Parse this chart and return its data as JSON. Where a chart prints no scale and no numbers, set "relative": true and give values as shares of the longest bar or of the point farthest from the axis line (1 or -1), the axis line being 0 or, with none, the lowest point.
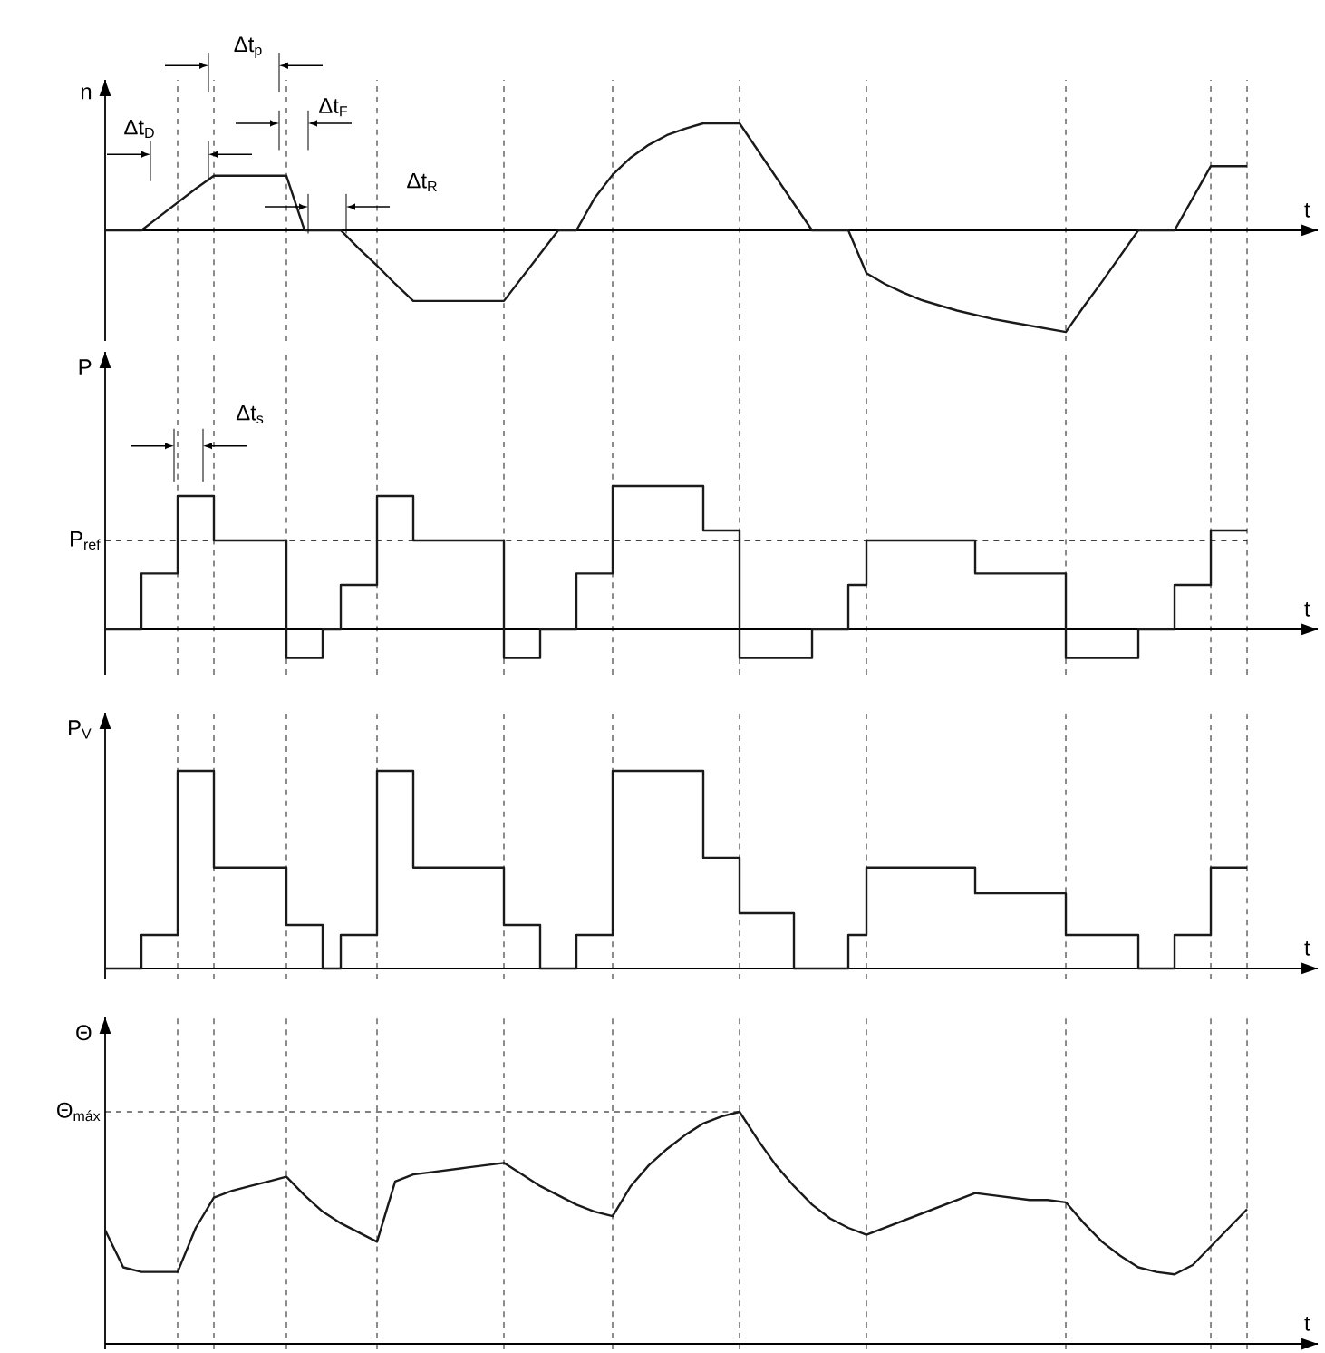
{
  "chart_data": [
    {
      "type": "line",
      "relative": true,
      "grid": "x",
      "xlabel": "t",
      "ylabel": "n",
      "categories": [
        null,
        null,
        null,
        null,
        null,
        null,
        null,
        null,
        null,
        null,
        null,
        null,
        null,
        null,
        null,
        null,
        null,
        null,
        null,
        null,
        null,
        null,
        null,
        null,
        null,
        null,
        null,
        null,
        null,
        null,
        null,
        null,
        null,
        null,
        null,
        null,
        null,
        null,
        null,
        null,
        null,
        null,
        null,
        null,
        null,
        null,
        null,
        null,
        null,
        null,
        null,
        null,
        null,
        null,
        null,
        null,
        null,
        null,
        null,
        null,
        null,
        null,
        null,
        null
      ],
      "series": [
        {
          "color": "#1a1a1a",
          "values": [
            0,
            0,
            0,
            0.13,
            0.26,
            0.39,
            0.51,
            0.51,
            0.51,
            0.51,
            0.51,
            0,
            0,
            0,
            -0.17,
            -0.33,
            -0.5,
            -0.66,
            -0.66,
            -0.66,
            -0.66,
            -0.66,
            -0.66,
            -0.44,
            -0.22,
            0,
            0,
            0.3,
            0.52,
            0.68,
            0.8,
            0.89,
            0.95,
            1,
            1,
            1,
            0.75,
            0.5,
            0.25,
            0,
            0,
            0,
            -0.4,
            -0.5,
            -0.58,
            -0.65,
            -0.7,
            -0.75,
            -0.79,
            -0.83,
            -0.86,
            -0.89,
            -0.92,
            -0.95,
            -0.71,
            -0.48,
            -0.24,
            0,
            0,
            0,
            0.3,
            0.6,
            0.6,
            0.6
          ]
        }
      ],
      "annotations": [
        "Δt$_{D}$",
        "Δt$_{p}$",
        "Δt$_{F}$",
        "Δt$_{R}$"
      ]
    },
    {
      "type": "step",
      "relative": true,
      "grid": "x",
      "xlabel": "t",
      "ylabel": "P",
      "categories": [
        null,
        null,
        null,
        null,
        null,
        null,
        null,
        null,
        null,
        null,
        null,
        null,
        null,
        null,
        null,
        null,
        null,
        null,
        null,
        null,
        null,
        null,
        null,
        null,
        null,
        null,
        null,
        null,
        null,
        null,
        null,
        null,
        null,
        null,
        null,
        null,
        null,
        null,
        null,
        null,
        null,
        null,
        null,
        null,
        null,
        null,
        null,
        null,
        null,
        null,
        null,
        null,
        null,
        null,
        null,
        null,
        null,
        null,
        null,
        null,
        null,
        null,
        null,
        null
      ],
      "series": [
        {
          "color": "#1a1a1a",
          "values": [
            0,
            0,
            0.39,
            0.39,
            0.93,
            0.93,
            0.62,
            0.62,
            0.62,
            0.62,
            -0.2,
            -0.2,
            0,
            0.31,
            0.31,
            0.93,
            0.93,
            0.62,
            0.62,
            0.62,
            0.62,
            0.62,
            -0.2,
            -0.2,
            0,
            0,
            0.39,
            0.39,
            1,
            1,
            1,
            1,
            1,
            0.69,
            0.69,
            -0.2,
            -0.2,
            -0.2,
            -0.2,
            0,
            0,
            0.31,
            0.62,
            0.62,
            0.62,
            0.62,
            0.62,
            0.62,
            0.39,
            0.39,
            0.39,
            0.39,
            0.39,
            -0.2,
            -0.2,
            -0.2,
            -0.2,
            0,
            0,
            0.31,
            0.31,
            0.69,
            0.69,
            0.69
          ]
        }
      ],
      "ref_lines": [
        {
          "axis": "y",
          "value": 0.62,
          "label": "P$_{ref}$",
          "line_style": "dashed"
        }
      ],
      "annotations": [
        "Δt$_{s}$"
      ]
    },
    {
      "type": "step",
      "relative": true,
      "grid": "x",
      "xlabel": "t",
      "ylabel": "P$_{V}$",
      "categories": [
        null,
        null,
        null,
        null,
        null,
        null,
        null,
        null,
        null,
        null,
        null,
        null,
        null,
        null,
        null,
        null,
        null,
        null,
        null,
        null,
        null,
        null,
        null,
        null,
        null,
        null,
        null,
        null,
        null,
        null,
        null,
        null,
        null,
        null,
        null,
        null,
        null,
        null,
        null,
        null,
        null,
        null,
        null,
        null,
        null,
        null,
        null,
        null,
        null,
        null,
        null,
        null,
        null,
        null,
        null,
        null,
        null,
        null,
        null,
        null,
        null,
        null,
        null,
        null
      ],
      "series": [
        {
          "color": "#1a1a1a",
          "values": [
            0,
            0,
            0.17,
            0.17,
            1,
            1,
            0.51,
            0.51,
            0.51,
            0.51,
            0.22,
            0.22,
            0,
            0.17,
            0.17,
            1,
            1,
            0.51,
            0.51,
            0.51,
            0.51,
            0.51,
            0.22,
            0.22,
            0,
            0,
            0.17,
            0.17,
            1,
            1,
            1,
            1,
            1,
            0.56,
            0.56,
            0.28,
            0.28,
            0.28,
            0,
            0,
            0,
            0.17,
            0.51,
            0.51,
            0.51,
            0.51,
            0.51,
            0.51,
            0.38,
            0.38,
            0.38,
            0.38,
            0.38,
            0.17,
            0.17,
            0.17,
            0.17,
            0,
            0,
            0.17,
            0.17,
            0.51,
            0.51,
            0.51
          ]
        }
      ]
    },
    {
      "type": "line",
      "relative": true,
      "grid": "x",
      "xlabel": "t",
      "ylabel": "Θ",
      "categories": [
        null,
        null,
        null,
        null,
        null,
        null,
        null,
        null,
        null,
        null,
        null,
        null,
        null,
        null,
        null,
        null,
        null,
        null,
        null,
        null,
        null,
        null,
        null,
        null,
        null,
        null,
        null,
        null,
        null,
        null,
        null,
        null,
        null,
        null,
        null,
        null,
        null,
        null,
        null,
        null,
        null,
        null,
        null,
        null,
        null,
        null,
        null,
        null,
        null,
        null,
        null,
        null,
        null,
        null,
        null,
        null,
        null,
        null,
        null,
        null,
        null,
        null,
        null,
        null
      ],
      "series": [
        {
          "color": "#1a1a1a",
          "values": [
            0.49,
            0.33,
            0.31,
            0.31,
            0.31,
            0.5,
            0.63,
            0.66,
            0.68,
            0.7,
            0.72,
            0.64,
            0.57,
            0.52,
            0.48,
            0.44,
            0.7,
            0.73,
            0.74,
            0.75,
            0.76,
            0.77,
            0.78,
            0.73,
            0.68,
            0.64,
            0.6,
            0.57,
            0.55,
            0.68,
            0.77,
            0.84,
            0.9,
            0.95,
            0.98,
            1,
            0.88,
            0.77,
            0.68,
            0.6,
            0.54,
            0.5,
            0.47,
            0.5,
            0.53,
            0.56,
            0.59,
            0.62,
            0.65,
            0.64,
            0.63,
            0.62,
            0.62,
            0.61,
            0.52,
            0.44,
            0.38,
            0.33,
            0.31,
            0.3,
            0.34,
            0.42,
            0.5,
            0.58
          ]
        }
      ],
      "ref_lines": [
        {
          "axis": "y",
          "value": 1,
          "label": "Θ$_{máx}$",
          "line_style": "dashed"
        }
      ]
    }
  ]
}
